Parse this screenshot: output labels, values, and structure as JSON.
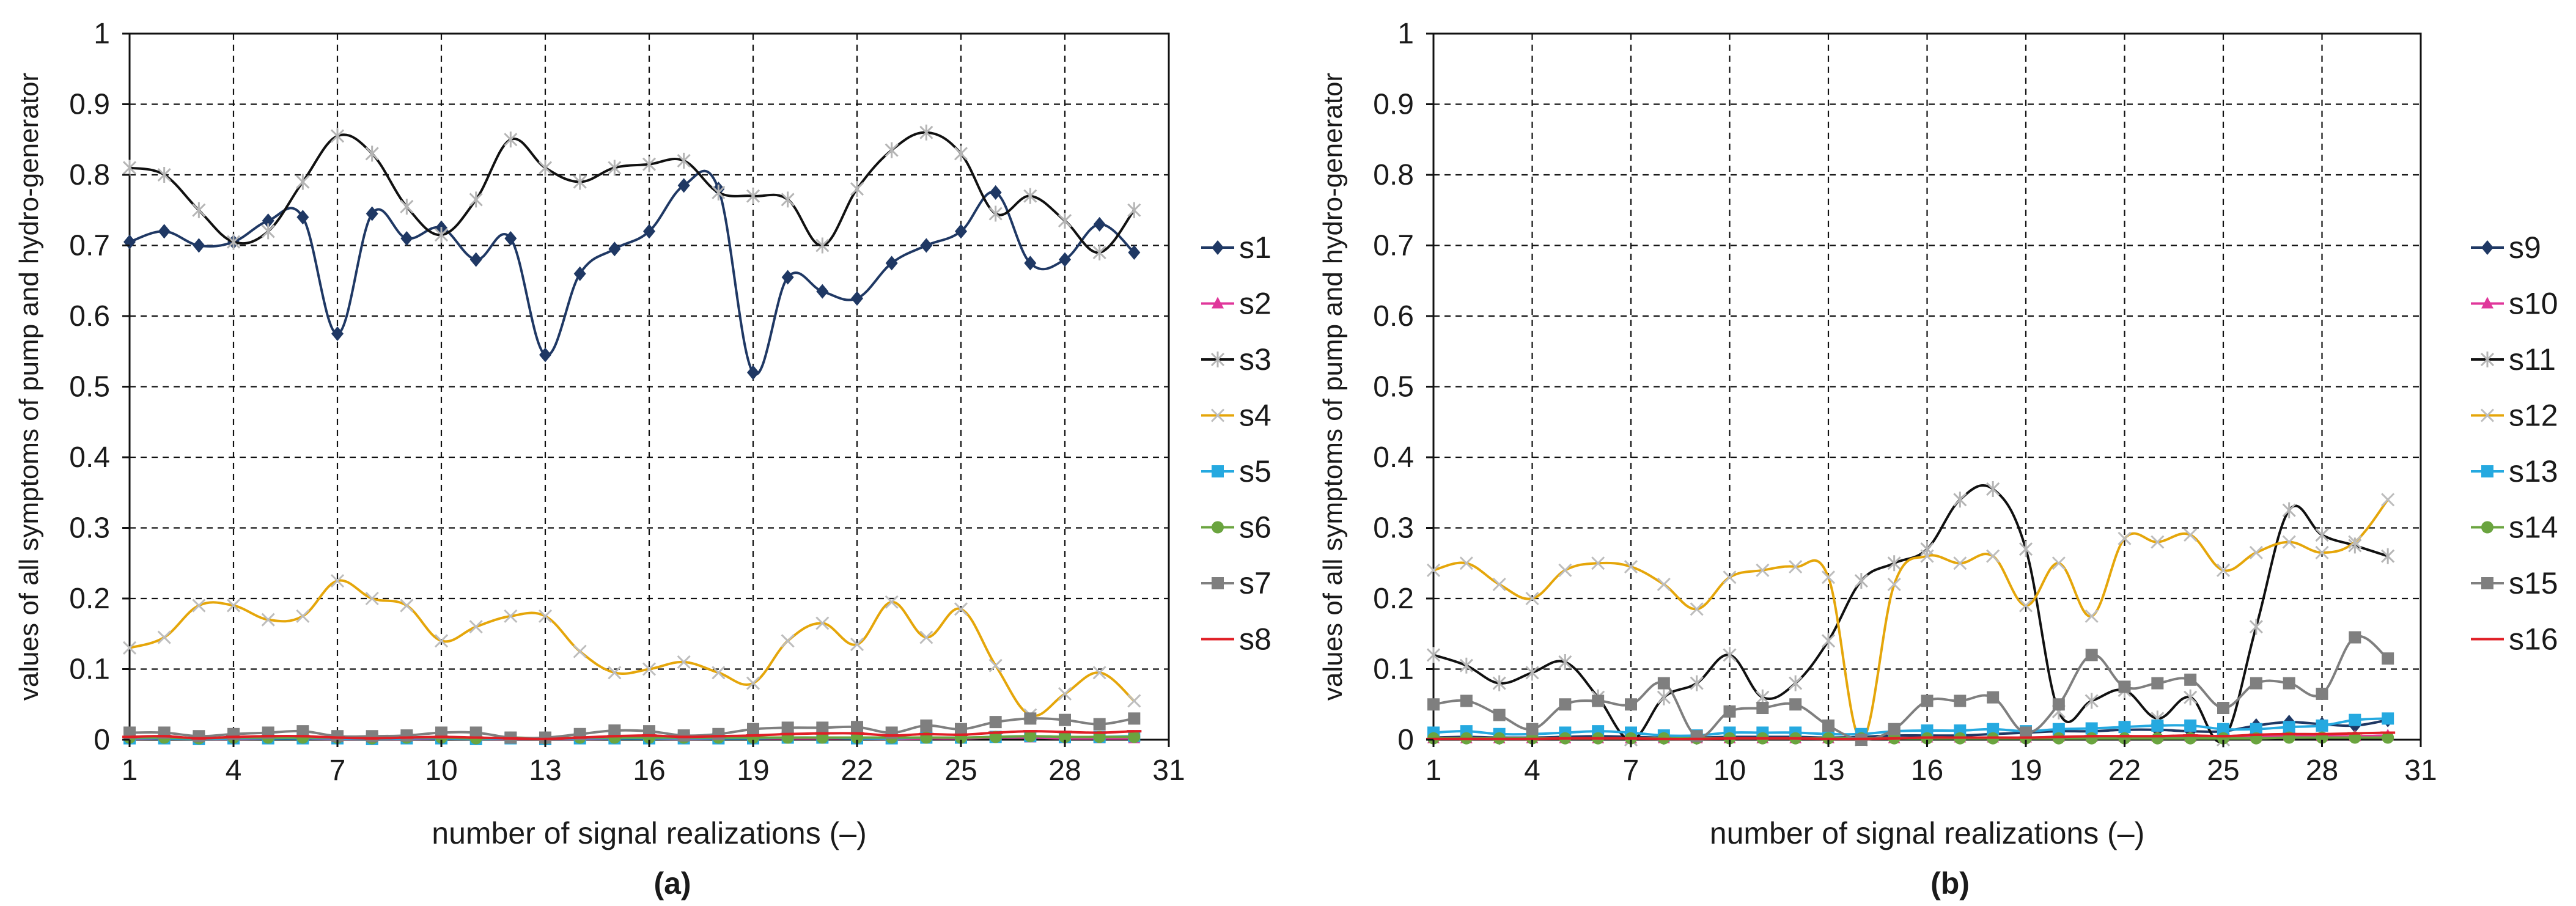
{
  "chart_data": [
    {
      "type": "line",
      "panel_label": "(a)",
      "title": "",
      "xlabel": "number of signal realizations (–)",
      "ylabel": "values of all symptoms of pump and hydro-generator",
      "xlim": [
        1,
        31
      ],
      "ylim": [
        0,
        1
      ],
      "xticks": [
        1,
        4,
        7,
        10,
        13,
        16,
        19,
        22,
        25,
        28,
        31
      ],
      "yticks": [
        0,
        0.1,
        0.2,
        0.3,
        0.4,
        0.5,
        0.6,
        0.7,
        0.8,
        0.9,
        1
      ],
      "ytick_labels": [
        "0",
        "0.1",
        "0.2",
        "0.3",
        "0.4",
        "0.5",
        "0.6",
        "0.7",
        "0.8",
        "0.9",
        "1"
      ],
      "grid": true,
      "legend": "right",
      "x": [
        1,
        2,
        3,
        4,
        5,
        6,
        7,
        8,
        9,
        10,
        11,
        12,
        13,
        14,
        15,
        16,
        17,
        18,
        19,
        20,
        21,
        22,
        23,
        24,
        25,
        26,
        27,
        28,
        29,
        30
      ],
      "series": [
        {
          "name": "s1",
          "color": "#1f3864",
          "marker": "diamond",
          "values": [
            0.705,
            0.72,
            0.7,
            0.705,
            0.735,
            0.74,
            0.575,
            0.745,
            0.71,
            0.725,
            0.68,
            0.71,
            0.545,
            0.66,
            0.695,
            0.72,
            0.785,
            0.78,
            0.52,
            0.655,
            0.635,
            0.625,
            0.675,
            0.7,
            0.72,
            0.775,
            0.675,
            0.68,
            0.73,
            0.69
          ]
        },
        {
          "name": "s2",
          "color": "#e0379b",
          "marker": "triangle",
          "values": [
            0.001,
            0.002,
            0.001,
            0.001,
            0.002,
            0.002,
            0.001,
            0.001,
            0.001,
            0.002,
            0.001,
            0.001,
            0.001,
            0.001,
            0.002,
            0.002,
            0.001,
            0.002,
            0.002,
            0.002,
            0.002,
            0.002,
            0.001,
            0.002,
            0.002,
            0.003,
            0.003,
            0.002,
            0.002,
            0.002
          ]
        },
        {
          "name": "s3",
          "color": "#111111",
          "marker": "star",
          "values": [
            0.81,
            0.8,
            0.75,
            0.705,
            0.72,
            0.79,
            0.855,
            0.83,
            0.755,
            0.715,
            0.765,
            0.85,
            0.81,
            0.79,
            0.81,
            0.815,
            0.82,
            0.775,
            0.77,
            0.765,
            0.7,
            0.78,
            0.835,
            0.86,
            0.83,
            0.745,
            0.77,
            0.735,
            0.69,
            0.75
          ]
        },
        {
          "name": "s4",
          "color": "#e5a60a",
          "marker": "x",
          "values": [
            0.13,
            0.145,
            0.19,
            0.19,
            0.17,
            0.175,
            0.225,
            0.2,
            0.19,
            0.14,
            0.16,
            0.175,
            0.175,
            0.125,
            0.095,
            0.1,
            0.11,
            0.095,
            0.08,
            0.14,
            0.165,
            0.135,
            0.195,
            0.145,
            0.185,
            0.105,
            0.035,
            0.065,
            0.095,
            0.055
          ]
        },
        {
          "name": "s5",
          "color": "#25a9e0",
          "marker": "square",
          "values": [
            0.002,
            0.002,
            0.001,
            0.002,
            0.002,
            0.002,
            0.002,
            0.001,
            0.002,
            0.002,
            0.001,
            0.002,
            0.001,
            0.002,
            0.002,
            0.002,
            0.002,
            0.002,
            0.002,
            0.003,
            0.003,
            0.002,
            0.002,
            0.003,
            0.003,
            0.004,
            0.005,
            0.004,
            0.004,
            0.005
          ]
        },
        {
          "name": "s6",
          "color": "#6aa43f",
          "marker": "circle",
          "values": [
            0.003,
            0.003,
            0.002,
            0.003,
            0.003,
            0.003,
            0.003,
            0.002,
            0.003,
            0.003,
            0.002,
            0.003,
            0.002,
            0.003,
            0.003,
            0.003,
            0.003,
            0.003,
            0.003,
            0.003,
            0.003,
            0.003,
            0.003,
            0.003,
            0.003,
            0.004,
            0.005,
            0.004,
            0.004,
            0.004
          ]
        },
        {
          "name": "s7",
          "color": "#7f7f7f",
          "marker": "square",
          "values": [
            0.01,
            0.01,
            0.005,
            0.008,
            0.01,
            0.012,
            0.005,
            0.005,
            0.006,
            0.01,
            0.01,
            0.003,
            0.003,
            0.008,
            0.013,
            0.012,
            0.006,
            0.008,
            0.015,
            0.017,
            0.017,
            0.018,
            0.01,
            0.02,
            0.015,
            0.025,
            0.03,
            0.028,
            0.022,
            0.03
          ]
        },
        {
          "name": "s8",
          "color": "#e01f26",
          "marker": "dash",
          "values": [
            0.004,
            0.005,
            0.002,
            0.004,
            0.005,
            0.005,
            0.003,
            0.002,
            0.003,
            0.004,
            0.003,
            0.002,
            0.001,
            0.003,
            0.005,
            0.006,
            0.004,
            0.005,
            0.006,
            0.008,
            0.009,
            0.009,
            0.006,
            0.008,
            0.007,
            0.01,
            0.012,
            0.011,
            0.01,
            0.012
          ]
        }
      ]
    },
    {
      "type": "line",
      "panel_label": "(b)",
      "title": "",
      "xlabel": "number of signal realizations (–)",
      "ylabel": "values of all symptoms of pump and hydro-generator",
      "xlim": [
        1,
        31
      ],
      "ylim": [
        0,
        1
      ],
      "xticks": [
        1,
        4,
        7,
        10,
        13,
        16,
        19,
        22,
        25,
        28,
        31
      ],
      "yticks": [
        0,
        0.1,
        0.2,
        0.3,
        0.4,
        0.5,
        0.6,
        0.7,
        0.8,
        0.9,
        1
      ],
      "ytick_labels": [
        "0",
        "0.1",
        "0.2",
        "0.3",
        "0.4",
        "0.5",
        "0.6",
        "0.7",
        "0.8",
        "0.9",
        "1"
      ],
      "grid": true,
      "legend": "right",
      "x": [
        1,
        2,
        3,
        4,
        5,
        6,
        7,
        8,
        9,
        10,
        11,
        12,
        13,
        14,
        15,
        16,
        17,
        18,
        19,
        20,
        21,
        22,
        23,
        24,
        25,
        26,
        27,
        28,
        29,
        30
      ],
      "series": [
        {
          "name": "s9",
          "color": "#1f3864",
          "marker": "diamond",
          "values": [
            0.003,
            0.004,
            0.003,
            0.003,
            0.004,
            0.005,
            0.004,
            0.003,
            0.003,
            0.004,
            0.004,
            0.004,
            0.003,
            0.004,
            0.006,
            0.006,
            0.006,
            0.008,
            0.01,
            0.012,
            0.012,
            0.014,
            0.014,
            0.012,
            0.012,
            0.02,
            0.025,
            0.022,
            0.02,
            0.028
          ]
        },
        {
          "name": "s10",
          "color": "#e0379b",
          "marker": "triangle",
          "values": [
            0.002,
            0.002,
            0.002,
            0.002,
            0.002,
            0.002,
            0.002,
            0.002,
            0.002,
            0.002,
            0.002,
            0.002,
            0.002,
            0.002,
            0.002,
            0.003,
            0.003,
            0.003,
            0.003,
            0.004,
            0.004,
            0.004,
            0.004,
            0.004,
            0.004,
            0.005,
            0.006,
            0.005,
            0.005,
            0.006
          ]
        },
        {
          "name": "s11",
          "color": "#111111",
          "marker": "star",
          "values": [
            0.12,
            0.105,
            0.08,
            0.095,
            0.11,
            0.06,
            0.0,
            0.06,
            0.08,
            0.12,
            0.06,
            0.08,
            0.14,
            0.225,
            0.25,
            0.27,
            0.34,
            0.355,
            0.27,
            0.04,
            0.055,
            0.07,
            0.03,
            0.06,
            0.0,
            0.16,
            0.325,
            0.29,
            0.275,
            0.26
          ]
        },
        {
          "name": "s12",
          "color": "#e5a60a",
          "marker": "x",
          "values": [
            0.24,
            0.25,
            0.22,
            0.2,
            0.24,
            0.25,
            0.245,
            0.22,
            0.185,
            0.23,
            0.24,
            0.245,
            0.23,
            0.0,
            0.22,
            0.26,
            0.25,
            0.26,
            0.19,
            0.25,
            0.175,
            0.285,
            0.28,
            0.29,
            0.24,
            0.265,
            0.28,
            0.265,
            0.28,
            0.34
          ]
        },
        {
          "name": "s13",
          "color": "#25a9e0",
          "marker": "square",
          "values": [
            0.01,
            0.012,
            0.008,
            0.008,
            0.01,
            0.012,
            0.01,
            0.006,
            0.006,
            0.01,
            0.01,
            0.01,
            0.008,
            0.008,
            0.012,
            0.013,
            0.013,
            0.015,
            0.012,
            0.015,
            0.016,
            0.018,
            0.02,
            0.02,
            0.015,
            0.015,
            0.018,
            0.02,
            0.028,
            0.03
          ]
        },
        {
          "name": "s14",
          "color": "#6aa43f",
          "marker": "circle",
          "values": [
            0.002,
            0.002,
            0.002,
            0.002,
            0.002,
            0.002,
            0.002,
            0.002,
            0.002,
            0.002,
            0.002,
            0.002,
            0.002,
            0.002,
            0.002,
            0.002,
            0.002,
            0.002,
            0.002,
            0.002,
            0.002,
            0.002,
            0.002,
            0.002,
            0.002,
            0.002,
            0.003,
            0.003,
            0.003,
            0.003
          ]
        },
        {
          "name": "s15",
          "color": "#7f7f7f",
          "marker": "square",
          "values": [
            0.05,
            0.055,
            0.035,
            0.015,
            0.05,
            0.055,
            0.05,
            0.08,
            0.005,
            0.04,
            0.045,
            0.05,
            0.02,
            0.0,
            0.015,
            0.055,
            0.055,
            0.06,
            0.01,
            0.05,
            0.12,
            0.075,
            0.08,
            0.085,
            0.045,
            0.08,
            0.08,
            0.065,
            0.145,
            0.115
          ]
        },
        {
          "name": "s16",
          "color": "#e01f26",
          "marker": "dash",
          "values": [
            0.001,
            0.001,
            0.001,
            0.001,
            0.002,
            0.002,
            0.002,
            0.001,
            0.001,
            0.002,
            0.002,
            0.002,
            0.001,
            0.001,
            0.002,
            0.003,
            0.003,
            0.003,
            0.003,
            0.004,
            0.005,
            0.005,
            0.005,
            0.006,
            0.005,
            0.007,
            0.008,
            0.008,
            0.009,
            0.01
          ]
        }
      ]
    }
  ]
}
